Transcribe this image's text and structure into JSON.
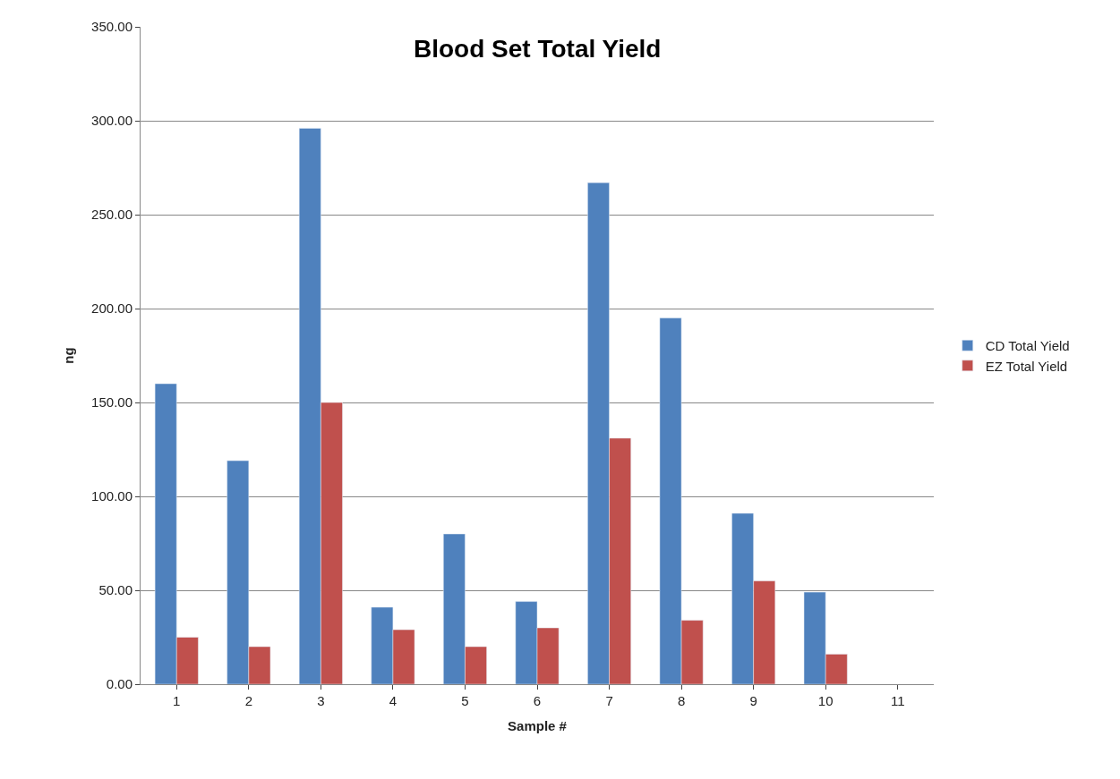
{
  "chart_data": {
    "type": "bar",
    "title": "Blood Set Total Yield",
    "xlabel": "Sample #",
    "ylabel": "ng",
    "categories": [
      "1",
      "2",
      "3",
      "4",
      "5",
      "6",
      "7",
      "8",
      "9",
      "10",
      "11"
    ],
    "series": [
      {
        "name": "CD Total Yield",
        "color": "#4f81bd",
        "values": [
          160,
          119,
          296,
          41,
          80,
          44,
          267,
          195,
          91,
          49,
          null
        ]
      },
      {
        "name": "EZ Total Yield",
        "color": "#c0504d",
        "values": [
          25,
          20,
          150,
          29,
          20,
          30,
          131,
          34,
          55,
          16,
          null
        ]
      }
    ],
    "ylim": [
      0,
      350
    ],
    "yticks": [
      {
        "value": 0,
        "label": "0.00"
      },
      {
        "value": 50,
        "label": "50.00"
      },
      {
        "value": 100,
        "label": "100.00"
      },
      {
        "value": 150,
        "label": "150.00"
      },
      {
        "value": 200,
        "label": "200.00"
      },
      {
        "value": 250,
        "label": "250.00"
      },
      {
        "value": 300,
        "label": "300.00"
      },
      {
        "value": 350,
        "label": "350.00"
      }
    ],
    "grid": "y",
    "legend": "right"
  }
}
